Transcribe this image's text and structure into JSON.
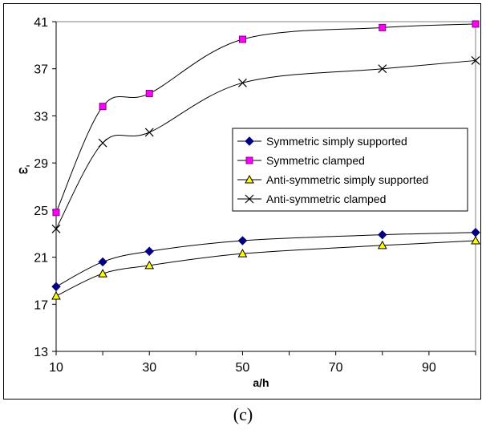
{
  "caption": "(c)",
  "chart_data": {
    "type": "line",
    "title": "",
    "xlabel": "a/h",
    "ylabel": "ω̄",
    "xlim": [
      10,
      100
    ],
    "ylim": [
      13,
      41
    ],
    "xticks": [
      10,
      30,
      50,
      70,
      90
    ],
    "yticks": [
      13,
      17,
      21,
      25,
      29,
      33,
      37,
      41
    ],
    "grid": false,
    "legend_position": "center-right",
    "x": [
      10,
      20,
      30,
      50,
      80,
      100
    ],
    "series": [
      {
        "name": "Symmetric simply supported",
        "marker": "diamond",
        "marker_color": "#000080",
        "values": [
          18.5,
          20.6,
          21.5,
          22.4,
          22.9,
          23.1
        ]
      },
      {
        "name": "Symmetric clamped",
        "marker": "square",
        "marker_color": "#ff00ff",
        "values": [
          24.8,
          33.8,
          34.9,
          39.5,
          40.5,
          40.8
        ]
      },
      {
        "name": "Anti-symmetric simply supported",
        "marker": "triangle",
        "marker_color": "#ffff00",
        "values": [
          17.7,
          19.6,
          20.3,
          21.3,
          22.0,
          22.4
        ]
      },
      {
        "name": "Anti-symmetric clamped",
        "marker": "x",
        "marker_color": "#000000",
        "values": [
          23.4,
          30.7,
          31.6,
          35.8,
          37.0,
          37.7
        ]
      }
    ]
  }
}
